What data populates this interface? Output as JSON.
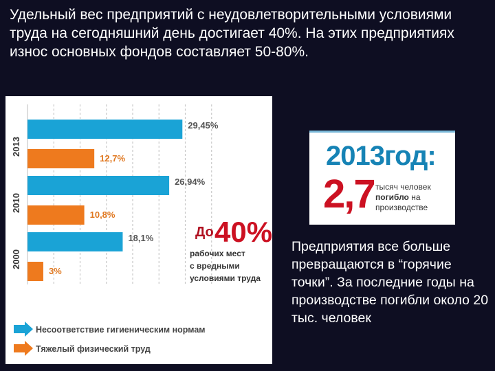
{
  "headline": "Удельный вес предприятий с неудовлетворительными условиями труда на сегодняшний день достигает 40%. На этих предприятиях износ основных фондов составляет 50-80%.",
  "chart_data": {
    "type": "bar",
    "orientation": "horizontal",
    "categories": [
      "2013",
      "2010",
      "2000"
    ],
    "series": [
      {
        "name": "Несоответствие гигиеническим нормам",
        "color": "#1aa3d6",
        "values": [
          29.45,
          26.94,
          18.1
        ],
        "labels": [
          "29,45%",
          "26,94%",
          "18,1%"
        ]
      },
      {
        "name": "Тяжелый физический труд",
        "color": "#ee7a1e",
        "values": [
          12.7,
          10.8,
          3
        ],
        "labels": [
          "12,7%",
          "10,8%",
          "3%"
        ]
      }
    ],
    "xlim": [
      0,
      50
    ],
    "grid": "vertical dashed",
    "legend": "bottom-left",
    "callout": {
      "prefix": "До",
      "value": "40%",
      "lines": [
        "рабочих мест",
        "с вредными",
        "условиями труда"
      ]
    }
  },
  "death_card": {
    "year": "2013год:",
    "number": "2,7",
    "caption_line1": "тысяч человек",
    "caption_bold": "погибло",
    "caption_line2_rest": " на",
    "caption_line3": "производстве"
  },
  "side_text": "Предприятия все больше превращаются в “горячие точки”. За последние годы на производстве погибли около 20 тыс. человек"
}
